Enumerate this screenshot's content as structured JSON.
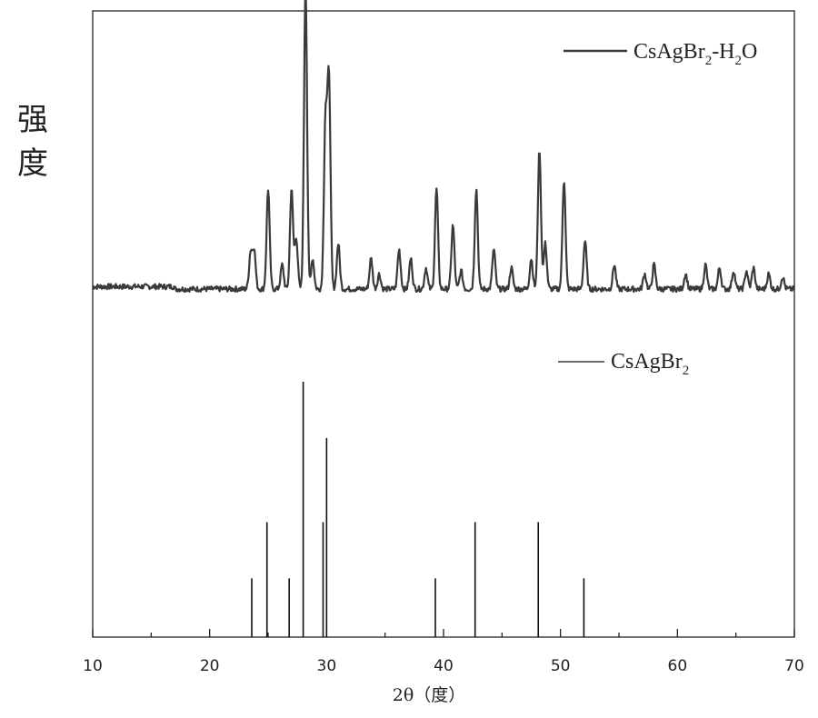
{
  "chart_data": {
    "type": "line",
    "xlabel": "2θ（度）",
    "ylabel_chars": [
      "强",
      "度"
    ],
    "xlim": [
      10,
      70
    ],
    "xticks": [
      "10",
      "20",
      "30",
      "40",
      "50",
      "60",
      "70"
    ],
    "xticks_values": [
      10,
      20,
      30,
      40,
      50,
      60,
      70
    ],
    "yticks": false,
    "grid": false,
    "legend_placement": "top-right (per panel)",
    "series": [
      {
        "name": "CsAgBr2-H2O",
        "name_parts": {
          "base": "CsAgBr",
          "sub1": "2",
          "mid": "-H",
          "sub2": "2",
          "end": "O"
        },
        "kind": "xrd-pattern",
        "color": "#3a3a3a",
        "baseline": 0.04,
        "peaks": [
          {
            "x": 23.5,
            "h": 0.12
          },
          {
            "x": 23.8,
            "h": 0.13
          },
          {
            "x": 25.0,
            "h": 0.33
          },
          {
            "x": 26.2,
            "h": 0.08
          },
          {
            "x": 27.0,
            "h": 0.33
          },
          {
            "x": 27.4,
            "h": 0.17
          },
          {
            "x": 28.2,
            "h": 1.0
          },
          {
            "x": 28.8,
            "h": 0.1
          },
          {
            "x": 29.9,
            "h": 0.55
          },
          {
            "x": 30.2,
            "h": 0.7
          },
          {
            "x": 31.0,
            "h": 0.15
          },
          {
            "x": 33.8,
            "h": 0.1
          },
          {
            "x": 34.5,
            "h": 0.05
          },
          {
            "x": 36.2,
            "h": 0.13
          },
          {
            "x": 37.2,
            "h": 0.1
          },
          {
            "x": 38.5,
            "h": 0.07
          },
          {
            "x": 39.4,
            "h": 0.33
          },
          {
            "x": 40.8,
            "h": 0.21
          },
          {
            "x": 41.5,
            "h": 0.06
          },
          {
            "x": 42.8,
            "h": 0.33
          },
          {
            "x": 44.3,
            "h": 0.13
          },
          {
            "x": 45.8,
            "h": 0.07
          },
          {
            "x": 47.5,
            "h": 0.1
          },
          {
            "x": 48.2,
            "h": 0.46
          },
          {
            "x": 48.7,
            "h": 0.15
          },
          {
            "x": 50.3,
            "h": 0.36
          },
          {
            "x": 52.1,
            "h": 0.16
          },
          {
            "x": 54.6,
            "h": 0.08
          },
          {
            "x": 57.2,
            "h": 0.05
          },
          {
            "x": 58.0,
            "h": 0.08
          },
          {
            "x": 60.7,
            "h": 0.05
          },
          {
            "x": 62.4,
            "h": 0.08
          },
          {
            "x": 63.6,
            "h": 0.07
          },
          {
            "x": 64.8,
            "h": 0.06
          },
          {
            "x": 65.9,
            "h": 0.06
          },
          {
            "x": 66.5,
            "h": 0.07
          },
          {
            "x": 67.8,
            "h": 0.05
          },
          {
            "x": 69.0,
            "h": 0.04
          }
        ]
      },
      {
        "name": "CsAgBr2",
        "name_parts": {
          "base": "CsAgBr",
          "sub1": "2"
        },
        "kind": "reference-sticks",
        "color": "#111111",
        "sticks": [
          {
            "x": 23.6,
            "h": 0.23
          },
          {
            "x": 24.9,
            "h": 0.45
          },
          {
            "x": 26.8,
            "h": 0.23
          },
          {
            "x": 28.0,
            "h": 1.0
          },
          {
            "x": 29.7,
            "h": 0.45
          },
          {
            "x": 30.0,
            "h": 0.78
          },
          {
            "x": 39.3,
            "h": 0.23
          },
          {
            "x": 42.7,
            "h": 0.45
          },
          {
            "x": 48.1,
            "h": 0.45
          },
          {
            "x": 52.0,
            "h": 0.23
          }
        ]
      }
    ]
  }
}
